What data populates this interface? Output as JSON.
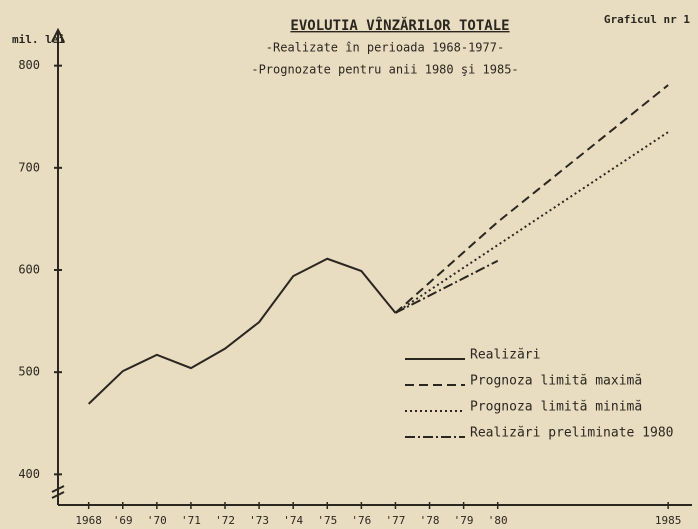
{
  "chart_data": {
    "type": "line",
    "title": "EVOLUTIA VÎNZĂRILOR TOTALE",
    "subtitle": [
      "-Realizate în perioada 1968-1977-",
      "-Prognozate pentru anii 1980 şi 1985-"
    ],
    "figure_label": "Graficul nr 1",
    "y_label": "mil. lei",
    "xlim": [
      1967.1,
      1985.7
    ],
    "ylim": [
      370,
      830
    ],
    "yticks": [
      400,
      500,
      600,
      700,
      800
    ],
    "xticks": [
      1968,
      {
        "value": 1969,
        "label": "'69"
      },
      {
        "value": 1970,
        "label": "'70"
      },
      {
        "value": 1971,
        "label": "'71"
      },
      {
        "value": 1972,
        "label": "'72"
      },
      {
        "value": 1973,
        "label": "'73"
      },
      {
        "value": 1974,
        "label": "'74"
      },
      {
        "value": 1975,
        "label": "'75"
      },
      {
        "value": 1976,
        "label": "'76"
      },
      {
        "value": 1977,
        "label": "'77"
      },
      {
        "value": 1978,
        "label": "'78"
      },
      {
        "value": 1979,
        "label": "'79"
      },
      {
        "value": 1980,
        "label": "'80"
      },
      1985
    ],
    "series": [
      {
        "name": "Realizări",
        "color": "#2b2620",
        "dash": "solid",
        "x": [
          1968,
          1969,
          1970,
          1971,
          1972,
          1973,
          1974,
          1975,
          1976,
          1977
        ],
        "values": [
          469,
          501,
          517,
          504,
          523,
          549,
          594,
          611,
          599,
          558
        ]
      },
      {
        "name": "Prognoza limită maximă",
        "color": "#2b2620",
        "dash": "dashed",
        "x": [
          1977,
          1980,
          1985
        ],
        "values": [
          558,
          647,
          781
        ]
      },
      {
        "name": "Prognoza limită minimă",
        "color": "#2b2620",
        "dash": "dotted",
        "x": [
          1977,
          1985
        ],
        "values": [
          558,
          735
        ]
      },
      {
        "name": "Realizări preliminate 1980",
        "color": "#2b2620",
        "dash": "dashdot",
        "x": [
          1977,
          1980
        ],
        "values": [
          558,
          609
        ]
      }
    ]
  }
}
